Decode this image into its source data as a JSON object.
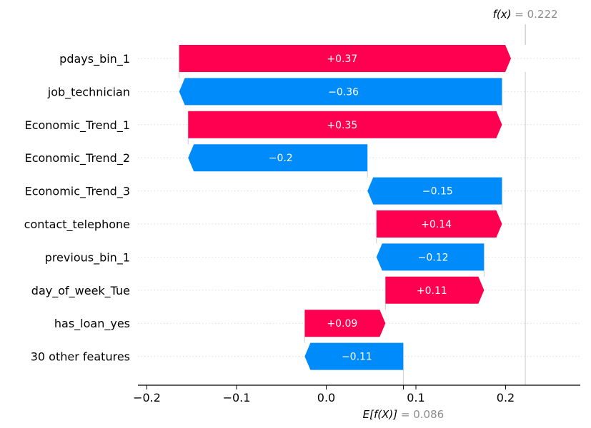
{
  "chart_data": {
    "type": "waterfall",
    "title": "",
    "xlabel": "",
    "ylabel": "",
    "xlim": [
      -0.2,
      0.28
    ],
    "xticks": [
      -0.2,
      -0.1,
      0.0,
      0.1,
      0.2
    ],
    "xtick_labels": [
      "−0.2",
      "−0.1",
      "0.0",
      "0.1",
      "0.2"
    ],
    "base_value": 0.086,
    "output_value": 0.222,
    "fx_label": "f(x)",
    "fx_value_text": " = 0.222",
    "ex_label": "E[f(X)]",
    "ex_value_text": " = 0.086",
    "features": [
      {
        "name": "pdays_bin_1",
        "contribution": 0.37,
        "label": "+0.37"
      },
      {
        "name": "job_technician",
        "contribution": -0.36,
        "label": "−0.36"
      },
      {
        "name": "Economic_Trend_1",
        "contribution": 0.35,
        "label": "+0.35"
      },
      {
        "name": "Economic_Trend_2",
        "contribution": -0.2,
        "label": "−0.2"
      },
      {
        "name": "Economic_Trend_3",
        "contribution": -0.15,
        "label": "−0.15"
      },
      {
        "name": "contact_telephone",
        "contribution": 0.14,
        "label": "+0.14"
      },
      {
        "name": "previous_bin_1",
        "contribution": -0.12,
        "label": "−0.12"
      },
      {
        "name": "day_of_week_Tue",
        "contribution": 0.11,
        "label": "+0.11"
      },
      {
        "name": "has_loan_yes",
        "contribution": 0.09,
        "label": "+0.09"
      },
      {
        "name": "30 other features",
        "contribution": -0.11,
        "label": "−0.11"
      }
    ],
    "positive_color": "#ff0051",
    "negative_color": "#008bfb"
  }
}
